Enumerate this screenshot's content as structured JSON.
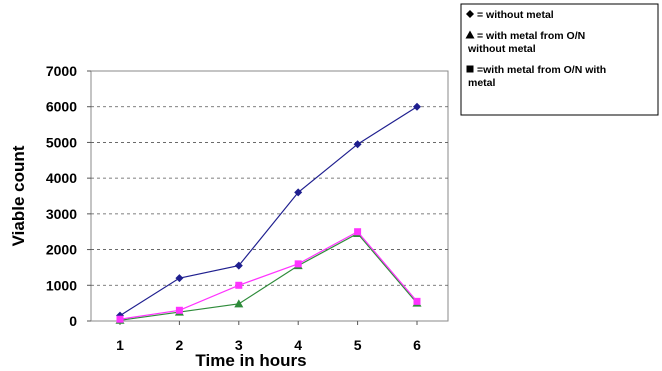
{
  "chart_data": {
    "type": "line",
    "x": [
      1,
      2,
      3,
      4,
      5,
      6
    ],
    "xlabel": "Time in hours",
    "ylabel": "Viable count",
    "ylim": [
      0,
      7000
    ],
    "yticks": [
      "0",
      "1000",
      "2000",
      "3000",
      "4000",
      "5000",
      "6000",
      "7000"
    ],
    "xticks": [
      "1",
      "2",
      "3",
      "4",
      "5",
      "6"
    ],
    "grid": "horizontal dashed",
    "legend_position": "top-right",
    "series": [
      {
        "marker": "diamond",
        "color": "#1f1f8f",
        "legend_lines": [
          "= without metal"
        ],
        "values": [
          150,
          1200,
          1550,
          3600,
          4950,
          6000
        ]
      },
      {
        "marker": "triangle",
        "color": "#2e8b3a",
        "legend_lines": [
          "= with metal from O/N",
          "without metal"
        ],
        "values": [
          20,
          250,
          480,
          1550,
          2450,
          500
        ]
      },
      {
        "marker": "square",
        "color": "#ff33ff",
        "legend_lines": [
          "=with metal from O/N with",
          "metal"
        ],
        "values": [
          50,
          300,
          1000,
          1600,
          2500,
          550
        ]
      }
    ]
  }
}
